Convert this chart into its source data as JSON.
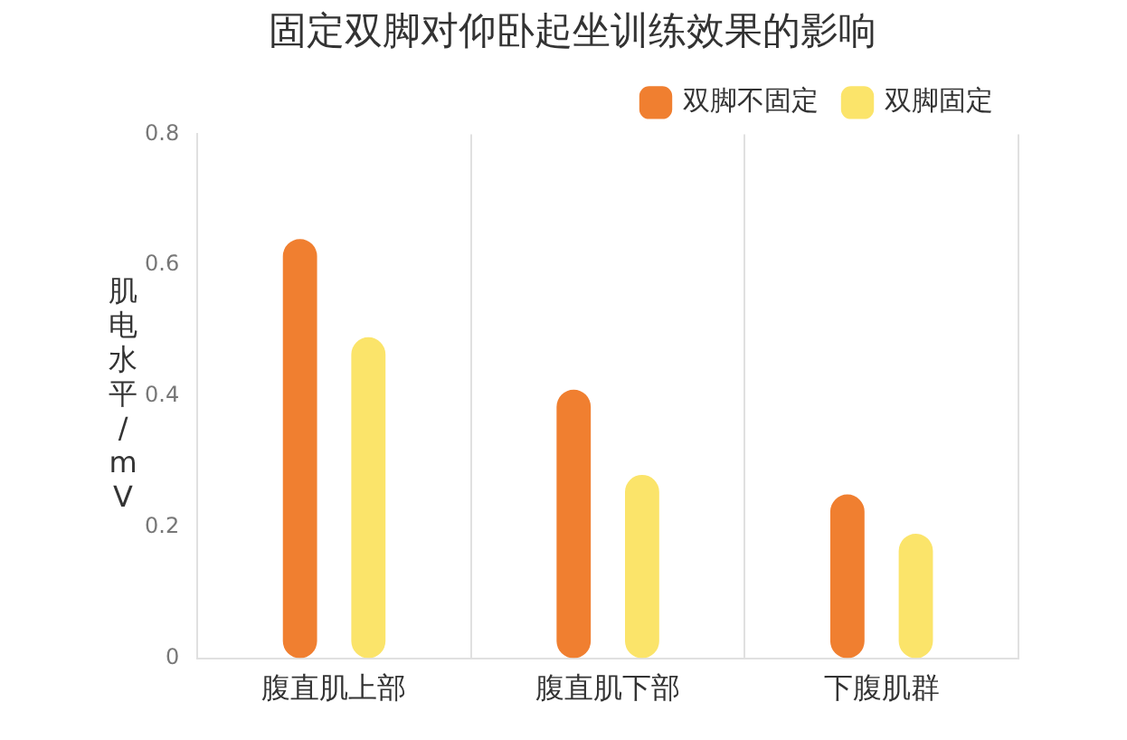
{
  "chart_data": {
    "type": "bar",
    "title": "固定双脚对仰卧起坐训练效果的影响",
    "ylabel": "肌电水平/mV",
    "categories": [
      "腹直肌上部",
      "腹直肌下部",
      "下腹肌群"
    ],
    "series": [
      {
        "name": "双脚不固定",
        "color": "#f07f30",
        "values": [
          0.64,
          0.41,
          0.25
        ]
      },
      {
        "name": "双脚固定",
        "color": "#fbe46a",
        "values": [
          0.49,
          0.28,
          0.19
        ]
      }
    ],
    "ylim": [
      0,
      0.8
    ],
    "yticks": [
      0,
      0.2,
      0.4,
      0.6,
      0.8
    ],
    "grid": "x",
    "legend": "top right"
  }
}
